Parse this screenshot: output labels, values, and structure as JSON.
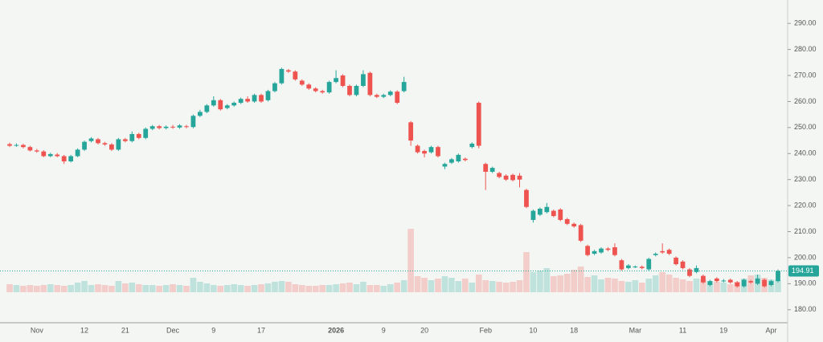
{
  "chart_data": {
    "type": "candlestick",
    "categories": [
      null,
      null,
      null,
      null,
      "Nov",
      null,
      null,
      null,
      null,
      null,
      null,
      "12",
      null,
      null,
      null,
      null,
      null,
      "21",
      null,
      null,
      null,
      null,
      null,
      null,
      "Dec",
      null,
      null,
      null,
      null,
      null,
      "9",
      null,
      null,
      null,
      null,
      null,
      null,
      "17",
      null,
      null,
      null,
      null,
      null,
      null,
      null,
      null,
      null,
      null,
      "2026",
      null,
      null,
      null,
      null,
      null,
      null,
      "9",
      null,
      null,
      null,
      null,
      null,
      "20",
      null,
      null,
      null,
      null,
      null,
      null,
      null,
      null,
      "Feb",
      null,
      null,
      null,
      null,
      null,
      null,
      "10",
      null,
      null,
      null,
      null,
      null,
      "18",
      null,
      null,
      null,
      null,
      null,
      null,
      null,
      null,
      "Mar",
      null,
      null,
      null,
      null,
      null,
      null,
      "11",
      null,
      null,
      null,
      null,
      null,
      "19",
      null,
      null,
      null,
      null,
      null,
      null,
      "Apr",
      null
    ],
    "open": [
      243.6,
      243.0,
      243.3,
      242.5,
      241.2,
      240.8,
      239.0,
      239.6,
      239.0,
      237.0,
      239.0,
      241.5,
      244.8,
      245.5,
      244.0,
      243.5,
      241.5,
      245.5,
      244.8,
      247.5,
      246.0,
      249.5,
      250.5,
      249.8,
      250.3,
      250.0,
      250.5,
      250.2,
      254.5,
      256.0,
      258.5,
      260.5,
      257.5,
      258.5,
      259.5,
      261.0,
      260.0,
      262.5,
      260.5,
      264.0,
      267.0,
      272.0,
      271.5,
      268.0,
      266.5,
      265.0,
      264.0,
      263.5,
      267.5,
      270.0,
      266.0,
      262.5,
      266.0,
      271.0,
      262.5,
      261.8,
      262.5,
      263.8,
      264.0,
      252.0,
      243.0,
      241.0,
      240.5,
      242.5,
      235.0,
      236.5,
      237.0,
      238.0,
      242.5,
      259.5,
      236.0,
      233.0,
      232.5,
      231.5,
      231.8,
      231.5,
      226.0,
      214.5,
      216.5,
      217.5,
      218.0,
      218.5,
      214.8,
      213.0,
      212.5,
      204.5,
      201.5,
      202.0,
      203.5,
      204.0,
      199.0,
      196.0,
      196.5,
      196.5,
      195.5,
      201.0,
      202.5,
      203.0,
      200.0,
      198.5,
      195.5,
      194.5,
      193.0,
      189.5,
      192.0,
      191.0,
      191.5,
      190.5,
      189.0,
      191.0,
      190.0,
      191.5,
      189.5,
      191.0
    ],
    "high": [
      244.2,
      243.9,
      243.8,
      243.0,
      241.8,
      241.3,
      240.3,
      240.2,
      239.5,
      239.5,
      242.0,
      245.0,
      246.3,
      246.0,
      244.5,
      244.0,
      246.0,
      246.0,
      248.5,
      248.0,
      250.0,
      251.0,
      251.0,
      250.8,
      251.0,
      251.3,
      251.0,
      255.0,
      256.8,
      259.0,
      262.0,
      261.0,
      259.0,
      260.0,
      261.5,
      262.0,
      263.0,
      263.0,
      264.5,
      267.5,
      273.0,
      272.5,
      272.0,
      268.5,
      267.0,
      265.5,
      264.5,
      268.0,
      272.0,
      270.5,
      266.5,
      266.5,
      272.0,
      271.5,
      263.0,
      263.0,
      264.3,
      264.3,
      269.5,
      252.5,
      243.5,
      241.5,
      243.0,
      243.0,
      236.5,
      238.3,
      240.0,
      238.5,
      244.3,
      260.0,
      236.5,
      235.0,
      233.0,
      232.0,
      232.3,
      232.5,
      226.5,
      218.5,
      219.3,
      221.0,
      218.5,
      219.0,
      215.3,
      213.5,
      213.0,
      205.0,
      203.0,
      204.0,
      204.0,
      205.5,
      199.5,
      197.5,
      197.0,
      197.0,
      200.0,
      202.0,
      205.5,
      203.5,
      200.5,
      199.0,
      196.0,
      197.0,
      193.5,
      191.5,
      192.5,
      191.8,
      192.0,
      191.0,
      192.0,
      191.5,
      193.5,
      192.0,
      191.5,
      195.5
    ],
    "low": [
      242.5,
      242.6,
      242.0,
      240.8,
      240.3,
      238.6,
      238.6,
      238.6,
      236.0,
      236.6,
      238.6,
      241.0,
      244.3,
      243.5,
      243.0,
      241.0,
      241.0,
      244.3,
      244.3,
      245.5,
      245.5,
      249.0,
      249.3,
      249.3,
      249.5,
      249.5,
      249.7,
      249.7,
      254.0,
      255.5,
      258.0,
      256.5,
      257.0,
      258.0,
      259.0,
      259.5,
      259.5,
      259.5,
      260.0,
      263.5,
      266.5,
      271.0,
      268.0,
      266.0,
      264.5,
      263.5,
      263.0,
      263.0,
      267.0,
      265.5,
      262.0,
      262.0,
      265.5,
      262.0,
      261.3,
      261.3,
      262.0,
      259.0,
      263.5,
      243.0,
      240.0,
      238.5,
      240.0,
      238.5,
      234.0,
      236.0,
      236.5,
      237.0,
      242.0,
      242.0,
      226.0,
      232.5,
      230.5,
      229.5,
      229.3,
      227.0,
      219.0,
      213.5,
      216.0,
      217.0,
      215.5,
      214.0,
      212.5,
      211.5,
      206.0,
      200.5,
      201.0,
      201.5,
      202.5,
      200.5,
      195.0,
      195.5,
      196.0,
      195.5,
      195.0,
      200.5,
      201.5,
      201.0,
      197.0,
      195.5,
      192.5,
      194.0,
      190.0,
      189.0,
      190.5,
      190.5,
      190.0,
      188.5,
      188.5,
      190.0,
      189.5,
      188.5,
      189.0,
      190.5
    ],
    "close": [
      243.0,
      243.3,
      242.5,
      241.2,
      240.8,
      239.0,
      239.8,
      239.0,
      237.0,
      239.0,
      241.5,
      244.5,
      245.8,
      244.0,
      243.5,
      241.5,
      245.5,
      244.8,
      247.5,
      246.0,
      249.5,
      250.5,
      249.8,
      250.3,
      250.0,
      250.8,
      250.2,
      254.5,
      256.0,
      258.5,
      260.5,
      257.0,
      258.5,
      259.5,
      261.0,
      260.0,
      262.5,
      260.0,
      264.0,
      267.0,
      272.5,
      271.5,
      268.5,
      266.5,
      265.0,
      264.0,
      263.5,
      267.5,
      269.0,
      266.0,
      262.5,
      266.0,
      270.5,
      262.5,
      261.8,
      262.5,
      263.8,
      259.5,
      267.5,
      245.0,
      240.5,
      240.0,
      242.5,
      239.0,
      236.0,
      237.8,
      239.5,
      237.5,
      243.8,
      243.0,
      233.0,
      234.5,
      231.0,
      230.0,
      229.8,
      230.0,
      219.5,
      218.0,
      218.8,
      219.5,
      216.0,
      214.5,
      213.0,
      212.0,
      206.5,
      201.0,
      202.5,
      203.5,
      203.0,
      201.0,
      195.5,
      197.0,
      196.6,
      196.0,
      199.5,
      201.5,
      202.0,
      201.5,
      197.5,
      196.0,
      193.0,
      196.0,
      190.5,
      191.0,
      191.0,
      191.2,
      190.5,
      189.0,
      191.5,
      190.5,
      192.0,
      189.0,
      191.0,
      194.91
    ],
    "volume": [
      10,
      9,
      8,
      9,
      8,
      9,
      10,
      9,
      8,
      9,
      12,
      14,
      9,
      10,
      9,
      8,
      14,
      11,
      12,
      10,
      9,
      9,
      8,
      9,
      10,
      9,
      8,
      18,
      13,
      11,
      9,
      8,
      9,
      10,
      9,
      8,
      9,
      10,
      11,
      13,
      14,
      13,
      10,
      9,
      8,
      8,
      9,
      9,
      10,
      11,
      12,
      10,
      13,
      9,
      9,
      8,
      10,
      12,
      15,
      79,
      20,
      18,
      15,
      17,
      20,
      18,
      14,
      17,
      12,
      22,
      15,
      14,
      13,
      12,
      13,
      15,
      50,
      25,
      27,
      30,
      20,
      21,
      23,
      28,
      32,
      19,
      21,
      16,
      18,
      17,
      14,
      13,
      15,
      12,
      17,
      21,
      25,
      22,
      18,
      16,
      14,
      17,
      16,
      14,
      13,
      12,
      10,
      13,
      17,
      21,
      22,
      18,
      16,
      15
    ],
    "up_color": "#26a69a",
    "down_color": "#ef5350",
    "ylim": [
      175,
      299
    ],
    "yticks": [
      {
        "value": 180,
        "label": "180.00"
      },
      {
        "value": 190,
        "label": "190.00"
      },
      {
        "value": 200,
        "label": "200.00"
      },
      {
        "value": 210,
        "label": "210.00"
      },
      {
        "value": 220,
        "label": "220.00"
      },
      {
        "value": 230,
        "label": "230.00"
      },
      {
        "value": 240,
        "label": "240.00"
      },
      {
        "value": 250,
        "label": "250.00"
      },
      {
        "value": 260,
        "label": "260.00"
      },
      {
        "value": 270,
        "label": "270.00"
      },
      {
        "value": 280,
        "label": "280.00"
      },
      {
        "value": 290,
        "label": "290.00"
      }
    ]
  }
}
